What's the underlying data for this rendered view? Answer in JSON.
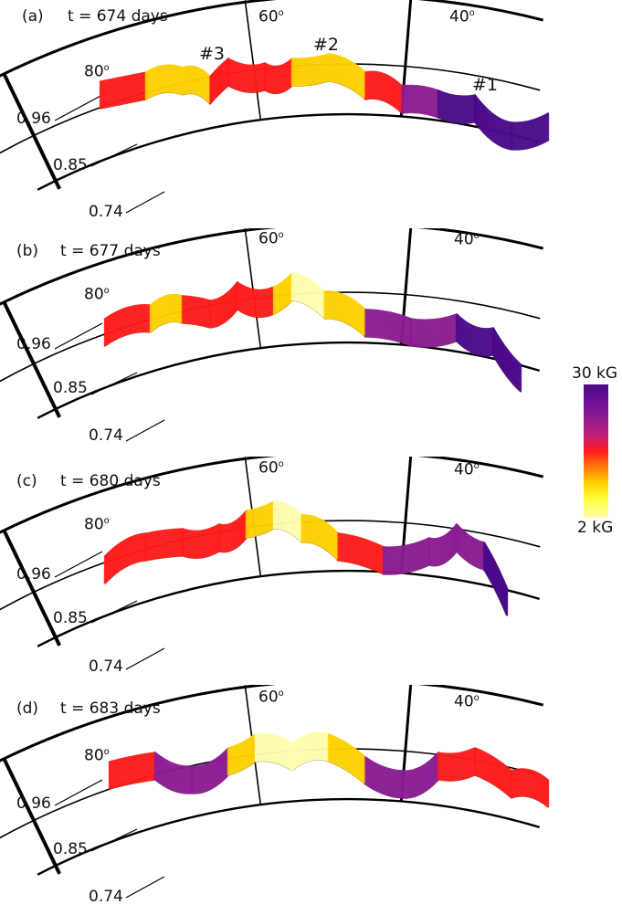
{
  "panels": [
    {
      "tag": "(a)",
      "time": "t = 674 days",
      "lon_60": "60",
      "lon_40": "40",
      "lat_80": "80",
      "deg": "o",
      "r_outer": "0.96",
      "r_mid": "0.85",
      "r_inner": "0.74",
      "loops": [
        "#3",
        "#2",
        "#1"
      ]
    },
    {
      "tag": "(b)",
      "time": "t = 677 days",
      "lon_60": "60",
      "lon_40": "40",
      "lat_80": "80",
      "deg": "o",
      "r_outer": "0.96",
      "r_mid": "0.85",
      "r_inner": "0.74"
    },
    {
      "tag": "(c)",
      "time": "t = 680 days",
      "lon_60": "60",
      "lon_40": "40",
      "lat_80": "80",
      "deg": "o",
      "r_outer": "0.96",
      "r_mid": "0.85",
      "r_inner": "0.74"
    },
    {
      "tag": "(d)",
      "time": "t = 683 days",
      "lon_60": "60",
      "lon_40": "40",
      "lat_80": "80",
      "deg": "o",
      "r_outer": "0.96",
      "r_mid": "0.85",
      "r_inner": "0.74"
    }
  ],
  "colorbar": {
    "max_label": "30 kG",
    "min_label": "2 kG",
    "colors": [
      "#4b0a8a",
      "#8b1a92",
      "#ff1a1a",
      "#ffd200",
      "#ffffb0"
    ]
  }
}
